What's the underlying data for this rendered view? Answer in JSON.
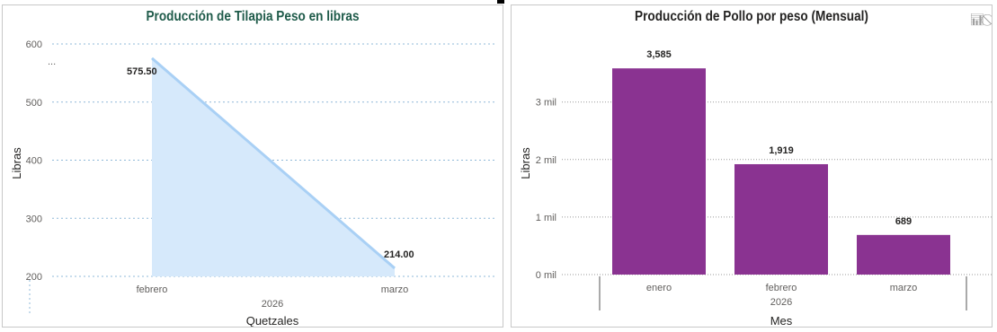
{
  "chart_data": [
    {
      "type": "area",
      "title": "Producción de Tilapia Peso en libras",
      "xlabel": "Quetzales",
      "x_group_label": "2026",
      "ylabel": "Libras",
      "categories": [
        "febrero",
        "marzo"
      ],
      "series": [
        {
          "values": [
            575.5,
            214.0
          ],
          "labels": [
            "575.50",
            "214.00"
          ]
        }
      ],
      "yticks": [
        200,
        300,
        400,
        500,
        600
      ],
      "ytick_labels": [
        "200",
        "300",
        "400",
        "500",
        "600"
      ],
      "ylim": [
        200,
        600
      ],
      "grid": true,
      "colors": {
        "fill": "#d6e9fb",
        "line": "#a9d0f5"
      }
    },
    {
      "type": "bar",
      "title": "Producción de Pollo por peso (Mensual)",
      "xlabel": "Mes",
      "x_group_label": "2026",
      "ylabel": "Libras",
      "categories": [
        "enero",
        "febrero",
        "marzo"
      ],
      "series": [
        {
          "values": [
            3585,
            1919,
            689
          ],
          "labels": [
            "3,585",
            "1,919",
            "689"
          ]
        }
      ],
      "yticks": [
        0,
        1000,
        2000,
        3000
      ],
      "ytick_labels": [
        "0 mil",
        "1 mil",
        "2 mil",
        "3 mil"
      ],
      "ylim": [
        0,
        3900
      ],
      "grid": true,
      "colors": {
        "bar": "#8a3391"
      }
    }
  ]
}
